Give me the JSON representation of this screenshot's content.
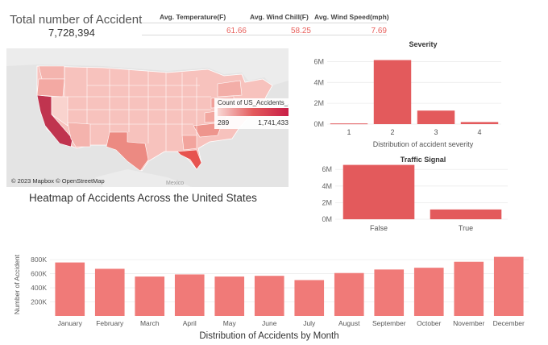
{
  "kpi": {
    "title": "Total number of Accident",
    "value": "7,728,394"
  },
  "stats": {
    "headers": [
      "Avg. Temperature(F)",
      "Avg. Wind Chill(F)",
      "Avg. Wind Speed(mph)"
    ],
    "values": [
      "61.66",
      "58.25",
      "7.69"
    ]
  },
  "map": {
    "legend_title": "Count of US_Accidents_...",
    "legend_min": "289",
    "legend_max": "1,741,433",
    "attribution": "© 2023 Mapbox © OpenStreetMap",
    "mexico_label": "Mexico",
    "caption": "Heatmap of Accidents Across the United States"
  },
  "colors": {
    "bar": "#e35a5c",
    "month_bar": "#f07a78",
    "accent": "#e8625e"
  },
  "chart_data": [
    {
      "type": "bar",
      "title": "Severity",
      "xlabel": "Distribution of accident severity",
      "categories": [
        "1",
        "2",
        "3",
        "4"
      ],
      "values": [
        67000,
        6150000,
        1300000,
        200000
      ],
      "yticks": [
        "0M",
        "2M",
        "4M",
        "6M"
      ],
      "ytick_values": [
        0,
        2000000,
        4000000,
        6000000
      ],
      "ylim": [
        0,
        6500000
      ]
    },
    {
      "type": "bar",
      "title": "Traffic Signal",
      "xlabel": "",
      "categories": [
        "False",
        "True"
      ],
      "values": [
        6550000,
        1180000
      ],
      "yticks": [
        "0M",
        "2M",
        "4M",
        "6M"
      ],
      "ytick_values": [
        0,
        2000000,
        4000000,
        6000000
      ],
      "ylim": [
        0,
        6800000
      ]
    },
    {
      "type": "bar",
      "title": "Distribution of Accidents by Month",
      "xlabel": "Distribution of Accidents by Month",
      "ylabel": "Number of Accident",
      "categories": [
        "January",
        "February",
        "March",
        "April",
        "May",
        "June",
        "July",
        "August",
        "September",
        "October",
        "November",
        "December"
      ],
      "values": [
        760000,
        670000,
        560000,
        590000,
        560000,
        570000,
        510000,
        610000,
        660000,
        685000,
        770000,
        840000
      ],
      "yticks": [
        "200K",
        "400K",
        "600K",
        "800K"
      ],
      "ytick_values": [
        200000,
        400000,
        600000,
        800000
      ],
      "ylim": [
        0,
        870000
      ]
    }
  ]
}
